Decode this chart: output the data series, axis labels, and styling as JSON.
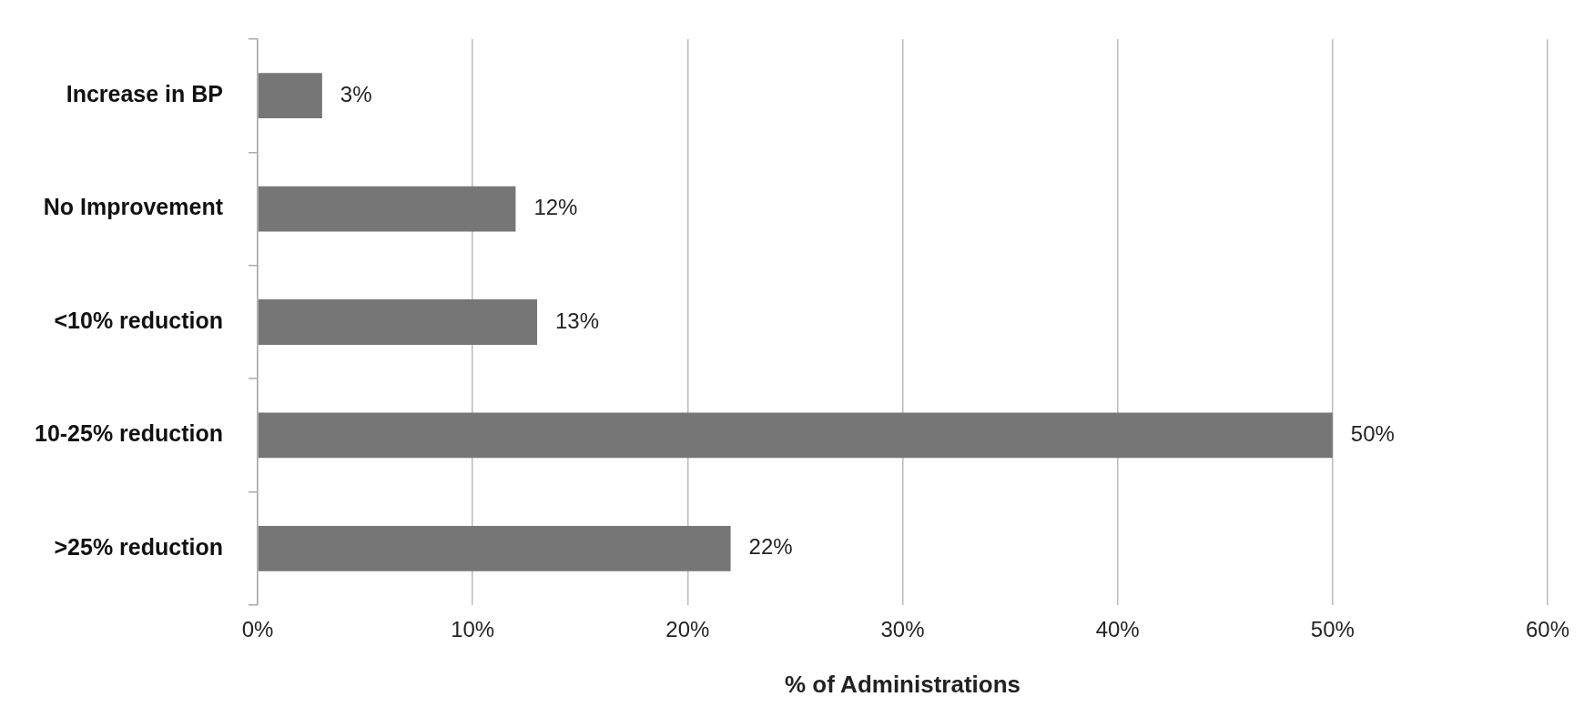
{
  "chart_data": {
    "type": "bar",
    "orientation": "horizontal",
    "xlabel": "% of Administrations",
    "categories": [
      "Increase in BP",
      "No Improvement",
      "<10% reduction",
      "10-25% reduction",
      ">25% reduction"
    ],
    "values": [
      3,
      12,
      13,
      50,
      22
    ],
    "color": "#767676",
    "value_labels": [
      "3%",
      "12%",
      "13%",
      "50%",
      "22%"
    ],
    "xlim": [
      0,
      60
    ],
    "xticks": [
      {
        "value": 0,
        "label": "0%"
      },
      {
        "value": 10,
        "label": "10%"
      },
      {
        "value": 20,
        "label": "20%"
      },
      {
        "value": 30,
        "label": "30%"
      },
      {
        "value": 40,
        "label": "40%"
      },
      {
        "value": 50,
        "label": "50%"
      },
      {
        "value": 60,
        "label": "60%"
      }
    ],
    "grid": "x"
  }
}
